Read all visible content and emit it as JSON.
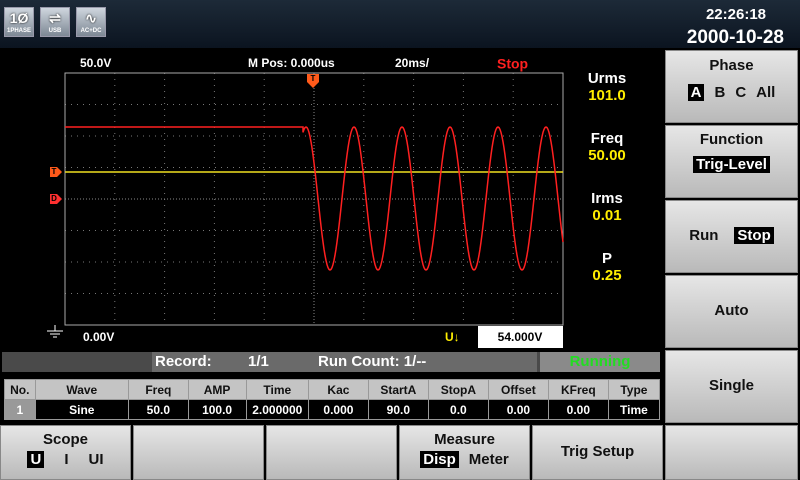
{
  "status_bar": {
    "phase_icon": "1Ø",
    "phase_label": "1PHASE",
    "usb_label": "USB",
    "acdc_label": "AC+DC",
    "time": "22:26:18",
    "date": "2000-10-28"
  },
  "scope": {
    "volts_div": "50.0V",
    "m_pos": "M Pos: 0.000us",
    "time_div": "20ms/",
    "state": "Stop",
    "trigger_marker": "T",
    "channel_markers": [
      "T",
      "D"
    ],
    "offset": "0.00V",
    "trigger_source": "U↓",
    "trigger_level": "54.000V"
  },
  "readings": [
    {
      "label": "Urms",
      "value": "101.0"
    },
    {
      "label": "Freq",
      "value": "50.00"
    },
    {
      "label": "Irms",
      "value": "0.01"
    },
    {
      "label": "P",
      "value": "0.25"
    }
  ],
  "side_menu": {
    "phase": {
      "title": "Phase",
      "options": [
        "A",
        "B",
        "C",
        "All"
      ]
    },
    "function": {
      "title": "Function",
      "option": "Trig-Level"
    },
    "run_stop": {
      "options": [
        "Run",
        "Stop"
      ]
    },
    "auto": "Auto",
    "single": "Single"
  },
  "record_bar": {
    "record_label": "Record:",
    "record": "1/1",
    "run_count": "Run Count: 1/--",
    "status": "Running"
  },
  "table": {
    "columns": [
      "No.",
      "Wave",
      "Freq",
      "AMP",
      "Time",
      "Kac",
      "StartA",
      "StopA",
      "Offset",
      "KFreq",
      "Type"
    ],
    "rows": [
      [
        "1",
        "Sine",
        "50.0",
        "100.0",
        "2.000000",
        "0.000",
        "90.0",
        "0.0",
        "0.00",
        "0.00",
        "Time"
      ]
    ]
  },
  "bottom_menu": {
    "scope": {
      "title": "Scope",
      "options": [
        "U",
        "I",
        "UI"
      ]
    },
    "measure": {
      "title": "Measure",
      "options": [
        "Disp",
        "Meter"
      ]
    },
    "trig_setup": "Trig Setup"
  }
}
